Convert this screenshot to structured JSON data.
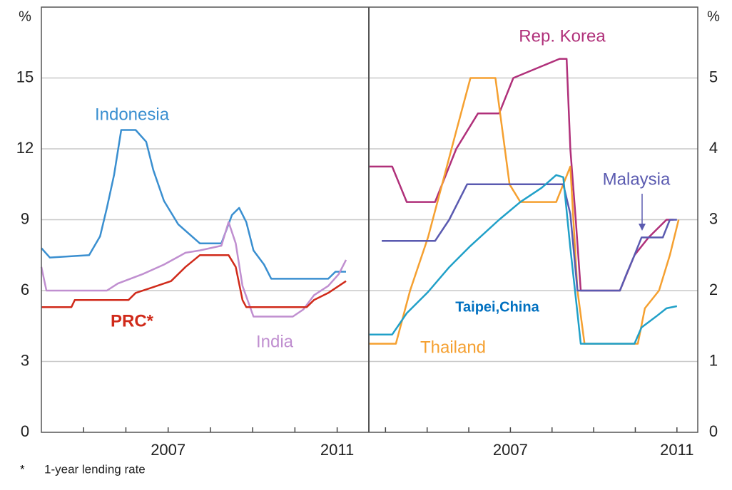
{
  "chart_data": [
    {
      "type": "line",
      "ylabel": "%",
      "xlim": [
        2004,
        2011.75
      ],
      "ylim": [
        0,
        18
      ],
      "yticks": [
        0,
        3,
        6,
        9,
        12,
        15
      ],
      "xticks": [
        2007,
        2011
      ],
      "xminor_ticks": [
        2005,
        2006,
        2008,
        2009,
        2010
      ],
      "grid": true,
      "series": [
        {
          "name": "Indonesia",
          "color": "#3a8fd0",
          "x": [
            2004.0,
            2004.2,
            2005.13,
            2005.39,
            2005.55,
            2005.72,
            2005.89,
            2006.23,
            2006.48,
            2006.65,
            2006.9,
            2007.24,
            2007.75,
            2008.26,
            2008.51,
            2008.68,
            2008.85,
            2009.02,
            2009.27,
            2009.44,
            2010.79,
            2010.96,
            2011.21
          ],
          "values": [
            7.8,
            7.4,
            7.5,
            8.3,
            9.5,
            10.9,
            12.8,
            12.8,
            12.3,
            11.1,
            9.8,
            8.8,
            8.0,
            8.0,
            9.2,
            9.5,
            8.9,
            7.7,
            7.1,
            6.5,
            6.5,
            6.8,
            6.8
          ]
        },
        {
          "name": "India",
          "color": "#c08fd0",
          "x": [
            2004.0,
            2004.12,
            2005.55,
            2005.81,
            2006.4,
            2006.9,
            2007.41,
            2007.75,
            2008.26,
            2008.43,
            2008.6,
            2008.76,
            2009.02,
            2009.95,
            2010.2,
            2010.45,
            2010.79,
            2011.04,
            2011.21
          ],
          "values": [
            7.0,
            6.0,
            6.0,
            6.3,
            6.7,
            7.1,
            7.6,
            7.7,
            7.9,
            8.9,
            8.0,
            6.2,
            4.9,
            4.9,
            5.2,
            5.8,
            6.2,
            6.7,
            7.3
          ]
        },
        {
          "name": "PRC*",
          "color": "#d02a1a",
          "x": [
            2004.0,
            2004.71,
            2004.79,
            2006.06,
            2006.23,
            2006.57,
            2007.07,
            2007.41,
            2007.75,
            2008.43,
            2008.6,
            2008.76,
            2008.85,
            2010.28,
            2010.45,
            2010.79,
            2011.04,
            2011.21
          ],
          "values": [
            5.3,
            5.3,
            5.6,
            5.6,
            5.9,
            6.1,
            6.4,
            7.0,
            7.5,
            7.5,
            7.0,
            5.6,
            5.3,
            5.3,
            5.6,
            5.9,
            6.2,
            6.4
          ]
        }
      ]
    },
    {
      "type": "line",
      "ylabel": "%",
      "xlim": [
        2003.6,
        2011.5
      ],
      "ylim": [
        0,
        6
      ],
      "yticks": [
        0,
        1,
        2,
        3,
        4,
        5
      ],
      "xticks": [
        2007,
        2011
      ],
      "xminor_ticks": [
        2004,
        2005,
        2006,
        2008,
        2009,
        2010
      ],
      "grid": true,
      "series": [
        {
          "name": "Rep. Korea",
          "color": "#b0307a",
          "x": [
            2003.6,
            2004.16,
            2004.51,
            2005.19,
            2005.36,
            2005.7,
            2006.22,
            2006.73,
            2007.07,
            2008.18,
            2008.35,
            2008.44,
            2008.57,
            2008.69,
            2009.63,
            2009.98,
            2010.32,
            2010.75,
            2010.92
          ],
          "values": [
            3.75,
            3.75,
            3.25,
            3.25,
            3.5,
            4.0,
            4.5,
            4.5,
            5.0,
            5.27,
            5.27,
            4.0,
            3.0,
            2.0,
            2.0,
            2.5,
            2.75,
            3.0,
            3.0
          ]
        },
        {
          "name": "Thailand",
          "color": "#f5a030",
          "x": [
            2003.6,
            2004.25,
            2004.59,
            2005.02,
            2005.36,
            2005.7,
            2006.04,
            2006.64,
            2006.81,
            2006.98,
            2007.24,
            2008.1,
            2008.44,
            2008.61,
            2008.78,
            2010.06,
            2010.23,
            2010.57,
            2010.83,
            2011.04
          ],
          "values": [
            1.25,
            1.25,
            2.0,
            2.75,
            3.5,
            4.25,
            5.0,
            5.0,
            4.25,
            3.5,
            3.25,
            3.25,
            3.75,
            2.0,
            1.25,
            1.25,
            1.75,
            2.0,
            2.5,
            3.0
          ]
        },
        {
          "name": "Malaysia",
          "color": "#5a5ab0",
          "x": [
            2003.91,
            2005.19,
            2005.53,
            2005.96,
            2008.27,
            2008.44,
            2008.61,
            2009.63,
            2009.8,
            2009.98,
            2010.15,
            2010.66,
            2010.83,
            2011.0
          ],
          "values": [
            2.7,
            2.7,
            3.0,
            3.5,
            3.5,
            3.08,
            2.0,
            2.0,
            2.25,
            2.5,
            2.75,
            2.75,
            3.0,
            3.0
          ]
        },
        {
          "name": "Taipei,China",
          "color": "#20a0c8",
          "x": [
            2003.6,
            2004.16,
            2004.51,
            2005.02,
            2005.53,
            2006.04,
            2006.73,
            2007.24,
            2007.75,
            2008.1,
            2008.27,
            2008.44,
            2008.61,
            2008.69,
            2009.98,
            2010.15,
            2010.49,
            2010.75,
            2011.0
          ],
          "values": [
            1.38,
            1.38,
            1.68,
            1.98,
            2.33,
            2.63,
            3.0,
            3.25,
            3.45,
            3.63,
            3.6,
            2.6,
            1.68,
            1.25,
            1.25,
            1.48,
            1.63,
            1.75,
            1.78
          ]
        }
      ]
    }
  ],
  "footnote": {
    "mark": "*",
    "text": "1-year lending rate"
  }
}
